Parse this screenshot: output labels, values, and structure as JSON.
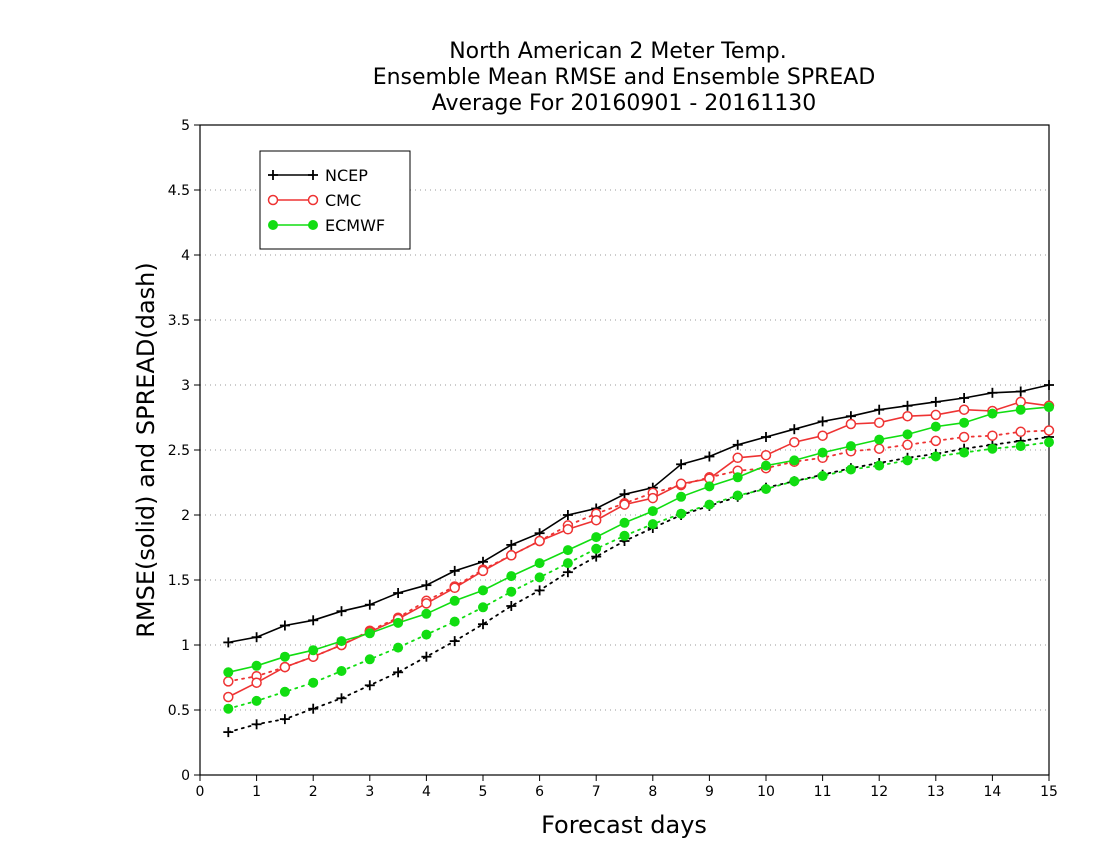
{
  "chart_data": {
    "type": "line",
    "title": [
      "North American 2 Meter Temp.",
      "Ensemble Mean RMSE and Ensemble SPREAD",
      "Average For 20160901 - 20161130"
    ],
    "xlabel": "Forecast days",
    "ylabel": "RMSE(solid) and SPREAD(dash)",
    "xlim": [
      0,
      15
    ],
    "ylim": [
      0,
      5
    ],
    "xticks": [
      0,
      1,
      2,
      3,
      4,
      5,
      6,
      7,
      8,
      9,
      10,
      11,
      12,
      13,
      14,
      15
    ],
    "yticks": [
      0,
      0.5,
      1,
      1.5,
      2,
      2.5,
      3,
      3.5,
      4,
      4.5,
      5
    ],
    "grid": "horizontal-dotted",
    "legend_position": "top-left",
    "x": [
      0.5,
      1,
      1.5,
      2,
      2.5,
      3,
      3.5,
      4,
      4.5,
      5,
      5.5,
      6,
      6.5,
      7,
      7.5,
      8,
      8.5,
      9,
      9.5,
      10,
      10.5,
      11,
      11.5,
      12,
      12.5,
      13,
      13.5,
      14,
      14.5,
      15
    ],
    "series": [
      {
        "name": "NCEP",
        "color": "#000000",
        "marker": "plus",
        "rmse": [
          1.02,
          1.06,
          1.15,
          1.19,
          1.26,
          1.31,
          1.4,
          1.46,
          1.57,
          1.64,
          1.77,
          1.86,
          2.0,
          2.05,
          2.16,
          2.21,
          2.39,
          2.45,
          2.54,
          2.6,
          2.66,
          2.72,
          2.76,
          2.81,
          2.84,
          2.87,
          2.9,
          2.94,
          2.95,
          3.0
        ],
        "spread": [
          0.33,
          0.39,
          0.43,
          0.51,
          0.59,
          0.69,
          0.79,
          0.91,
          1.03,
          1.16,
          1.3,
          1.42,
          1.56,
          1.68,
          1.8,
          1.9,
          2.0,
          2.07,
          2.14,
          2.21,
          2.26,
          2.31,
          2.36,
          2.4,
          2.44,
          2.47,
          2.51,
          2.54,
          2.57,
          2.6
        ]
      },
      {
        "name": "CMC",
        "color": "#ee3333",
        "marker": "open-circle",
        "rmse": [
          0.6,
          0.71,
          0.83,
          0.91,
          1.0,
          1.1,
          1.2,
          1.32,
          1.44,
          1.57,
          1.69,
          1.8,
          1.89,
          1.96,
          2.08,
          2.13,
          2.24,
          2.28,
          2.44,
          2.46,
          2.56,
          2.61,
          2.7,
          2.71,
          2.76,
          2.77,
          2.81,
          2.8,
          2.87,
          2.84
        ],
        "spread": [
          0.72,
          0.76,
          0.83,
          0.91,
          1.0,
          1.11,
          1.21,
          1.34,
          1.45,
          1.58,
          1.69,
          1.8,
          1.92,
          2.01,
          2.09,
          2.17,
          2.23,
          2.29,
          2.34,
          2.36,
          2.41,
          2.44,
          2.49,
          2.51,
          2.54,
          2.57,
          2.6,
          2.61,
          2.64,
          2.65
        ]
      },
      {
        "name": "ECMWF",
        "color": "#11dd11",
        "marker": "filled-circle",
        "rmse": [
          0.79,
          0.84,
          0.91,
          0.96,
          1.03,
          1.09,
          1.17,
          1.24,
          1.34,
          1.42,
          1.53,
          1.63,
          1.73,
          1.83,
          1.94,
          2.03,
          2.14,
          2.22,
          2.29,
          2.38,
          2.42,
          2.48,
          2.53,
          2.58,
          2.62,
          2.68,
          2.71,
          2.78,
          2.81,
          2.83
        ],
        "spread": [
          0.51,
          0.57,
          0.64,
          0.71,
          0.8,
          0.89,
          0.98,
          1.08,
          1.18,
          1.29,
          1.41,
          1.52,
          1.63,
          1.74,
          1.84,
          1.93,
          2.01,
          2.08,
          2.15,
          2.2,
          2.26,
          2.3,
          2.35,
          2.38,
          2.42,
          2.45,
          2.48,
          2.51,
          2.53,
          2.56
        ]
      }
    ]
  }
}
